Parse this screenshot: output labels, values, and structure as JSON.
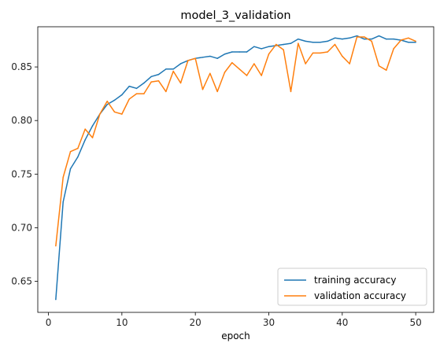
{
  "chart_data": {
    "type": "line",
    "title": "model_3_validation",
    "xlabel": "epoch",
    "ylabel": "",
    "xlim": [
      -1.45,
      52.45
    ],
    "ylim": [
      0.621,
      0.8875
    ],
    "xticks": [
      0,
      10,
      20,
      30,
      40,
      50
    ],
    "yticks": [
      0.65,
      0.7,
      0.75,
      0.8,
      0.85
    ],
    "ytick_labels": [
      "0.65",
      "0.70",
      "0.75",
      "0.80",
      "0.85"
    ],
    "grid": false,
    "legend_position": "lower-right",
    "x": [
      1,
      2,
      3,
      4,
      5,
      6,
      7,
      8,
      9,
      10,
      11,
      12,
      13,
      14,
      15,
      16,
      17,
      18,
      19,
      20,
      21,
      22,
      23,
      24,
      25,
      26,
      27,
      28,
      29,
      30,
      31,
      32,
      33,
      34,
      35,
      36,
      37,
      38,
      39,
      40,
      41,
      42,
      43,
      44,
      45,
      46,
      47,
      48,
      49,
      50
    ],
    "series": [
      {
        "name": "training accuracy",
        "color": "#1f77b4",
        "values": [
          0.633,
          0.724,
          0.755,
          0.766,
          0.782,
          0.795,
          0.806,
          0.815,
          0.819,
          0.824,
          0.832,
          0.83,
          0.835,
          0.841,
          0.843,
          0.848,
          0.848,
          0.853,
          0.856,
          0.858,
          0.859,
          0.86,
          0.858,
          0.862,
          0.864,
          0.864,
          0.864,
          0.869,
          0.867,
          0.869,
          0.87,
          0.871,
          0.872,
          0.876,
          0.874,
          0.873,
          0.873,
          0.874,
          0.877,
          0.876,
          0.877,
          0.879,
          0.876,
          0.876,
          0.879,
          0.876,
          0.876,
          0.875,
          0.873,
          0.873
        ]
      },
      {
        "name": "validation accuracy",
        "color": "#ff7f0e",
        "values": [
          0.683,
          0.747,
          0.771,
          0.774,
          0.792,
          0.784,
          0.806,
          0.818,
          0.808,
          0.806,
          0.82,
          0.825,
          0.825,
          0.836,
          0.837,
          0.827,
          0.846,
          0.835,
          0.856,
          0.858,
          0.829,
          0.844,
          0.827,
          0.845,
          0.854,
          0.848,
          0.842,
          0.853,
          0.842,
          0.862,
          0.871,
          0.866,
          0.827,
          0.872,
          0.853,
          0.863,
          0.863,
          0.864,
          0.871,
          0.86,
          0.853,
          0.878,
          0.878,
          0.874,
          0.851,
          0.847,
          0.867,
          0.875,
          0.877,
          0.874
        ]
      }
    ]
  }
}
